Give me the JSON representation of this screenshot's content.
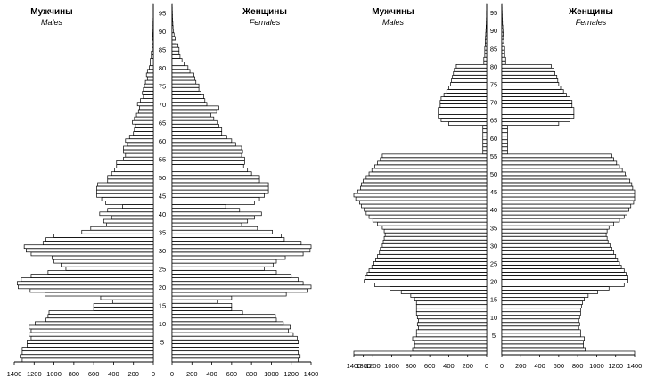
{
  "chart_data": [
    {
      "type": "bar",
      "subtype": "population-pyramid",
      "title": "",
      "male_label": "Мужчины",
      "male_label_en": "Males",
      "female_label": "Женщины",
      "female_label_en": "Females",
      "xlabel": "",
      "ylabel": "",
      "age_ticks": [
        "5",
        "10",
        "15",
        "20",
        "25",
        "30",
        "35",
        "40",
        "45",
        "50",
        "55",
        "60",
        "65",
        "70",
        "75",
        "80",
        "85",
        "90",
        "95"
      ],
      "male_ticks": [
        "1400",
        "1200",
        "1000",
        "800",
        "600",
        "400",
        "200",
        "0"
      ],
      "female_ticks": [
        "0",
        "200",
        "400",
        "600",
        "800",
        "1000",
        "1200",
        "1400"
      ],
      "xlim": [
        0,
        1400
      ],
      "ages": [
        0,
        1,
        2,
        3,
        4,
        5,
        6,
        7,
        8,
        9,
        10,
        11,
        12,
        13,
        14,
        15,
        16,
        17,
        18,
        19,
        20,
        21,
        22,
        23,
        24,
        25,
        26,
        27,
        28,
        29,
        30,
        31,
        32,
        33,
        34,
        35,
        36,
        37,
        38,
        39,
        40,
        41,
        42,
        43,
        44,
        45,
        46,
        47,
        48,
        49,
        50,
        51,
        52,
        53,
        54,
        55,
        56,
        57,
        58,
        59,
        60,
        61,
        62,
        63,
        64,
        65,
        66,
        67,
        68,
        69,
        70,
        71,
        72,
        73,
        74,
        75,
        76,
        77,
        78,
        79,
        80,
        81,
        82,
        83,
        84,
        85,
        86,
        87,
        88,
        89,
        90,
        91,
        92,
        93,
        94,
        95,
        96,
        97
      ],
      "male": [
        1320,
        1340,
        1320,
        1320,
        1270,
        1270,
        1230,
        1250,
        1230,
        1250,
        1190,
        1080,
        1060,
        1050,
        600,
        600,
        410,
        530,
        1090,
        1240,
        1360,
        1370,
        1330,
        1230,
        1060,
        880,
        930,
        1000,
        1020,
        1230,
        1280,
        1300,
        1110,
        1080,
        1000,
        720,
        630,
        470,
        500,
        420,
        540,
        460,
        310,
        480,
        520,
        570,
        570,
        570,
        560,
        460,
        460,
        420,
        390,
        370,
        370,
        300,
        280,
        300,
        300,
        260,
        280,
        240,
        200,
        190,
        180,
        210,
        190,
        170,
        150,
        140,
        160,
        130,
        100,
        110,
        100,
        90,
        80,
        60,
        70,
        60,
        40,
        30,
        30,
        20,
        20,
        10,
        10,
        10,
        8,
        5,
        4,
        3,
        3,
        2,
        1,
        1,
        1,
        1
      ],
      "female": [
        1270,
        1290,
        1270,
        1280,
        1280,
        1270,
        1260,
        1220,
        1170,
        1190,
        1120,
        1050,
        1040,
        710,
        600,
        600,
        460,
        600,
        1150,
        1360,
        1420,
        1320,
        1270,
        1200,
        1050,
        930,
        1020,
        1050,
        1140,
        1320,
        1390,
        1430,
        1300,
        1130,
        1100,
        1010,
        860,
        700,
        760,
        830,
        900,
        680,
        540,
        830,
        880,
        930,
        970,
        970,
        970,
        880,
        880,
        800,
        760,
        720,
        730,
        730,
        700,
        710,
        700,
        640,
        600,
        550,
        500,
        500,
        470,
        460,
        420,
        390,
        450,
        470,
        350,
        330,
        320,
        290,
        270,
        270,
        240,
        230,
        220,
        180,
        160,
        120,
        100,
        80,
        70,
        70,
        60,
        40,
        30,
        20,
        15,
        10,
        8,
        5,
        4,
        3,
        2,
        1
      ]
    },
    {
      "type": "bar",
      "subtype": "population-pyramid",
      "title": "",
      "male_label": "Мужчины",
      "male_label_en": "Males",
      "female_label": "Женщины",
      "female_label_en": "Females",
      "xlabel": "",
      "ylabel": "",
      "age_ticks": [
        "5",
        "10",
        "15",
        "20",
        "25",
        "30",
        "35",
        "40",
        "45",
        "50",
        "55",
        "60",
        "65",
        "70",
        "75",
        "80",
        "85",
        "90",
        "95"
      ],
      "male_ticks": [
        "1400",
        "1300",
        "1200",
        "1000",
        "800",
        "600",
        "400",
        "200",
        "0"
      ],
      "female_ticks": [
        "0",
        "200",
        "400",
        "600",
        "800",
        "1000",
        "1200",
        "1400"
      ],
      "xlim": [
        0,
        1400
      ],
      "ages": [
        0,
        1,
        2,
        3,
        4,
        5,
        6,
        7,
        8,
        9,
        10,
        11,
        12,
        13,
        14,
        15,
        16,
        17,
        18,
        19,
        20,
        21,
        22,
        23,
        24,
        25,
        26,
        27,
        28,
        29,
        30,
        31,
        32,
        33,
        34,
        35,
        36,
        37,
        38,
        39,
        40,
        41,
        42,
        43,
        44,
        45,
        46,
        47,
        48,
        49,
        50,
        51,
        52,
        53,
        54,
        55,
        56,
        57,
        58,
        59,
        60,
        61,
        62,
        63,
        64,
        65,
        66,
        67,
        68,
        69,
        70,
        71,
        72,
        73,
        74,
        75,
        76,
        77,
        78,
        79,
        80,
        81,
        82,
        83,
        84,
        85,
        86,
        87,
        88,
        89,
        90,
        91,
        92,
        93,
        94,
        95,
        96,
        97
      ],
      "male": [
        1400,
        780,
        760,
        760,
        780,
        740,
        740,
        720,
        730,
        720,
        730,
        740,
        740,
        740,
        740,
        760,
        800,
        900,
        1020,
        1180,
        1290,
        1280,
        1260,
        1240,
        1210,
        1190,
        1170,
        1150,
        1130,
        1120,
        1100,
        1090,
        1080,
        1070,
        1080,
        1100,
        1150,
        1200,
        1240,
        1270,
        1290,
        1320,
        1340,
        1380,
        1400,
        1360,
        1330,
        1320,
        1300,
        1270,
        1240,
        1210,
        1180,
        1150,
        1120,
        1100,
        40,
        40,
        40,
        40,
        40,
        40,
        40,
        40,
        400,
        480,
        510,
        510,
        510,
        490,
        490,
        480,
        450,
        420,
        400,
        380,
        370,
        360,
        350,
        340,
        320,
        30,
        30,
        20,
        20,
        20,
        15,
        15,
        12,
        10,
        8,
        6,
        4,
        3,
        2,
        2,
        1,
        1
      ],
      "female": [
        1480,
        880,
        860,
        860,
        870,
        830,
        830,
        810,
        820,
        810,
        820,
        830,
        830,
        840,
        850,
        870,
        910,
        1010,
        1130,
        1290,
        1330,
        1330,
        1310,
        1290,
        1260,
        1240,
        1220,
        1200,
        1180,
        1160,
        1140,
        1120,
        1110,
        1100,
        1110,
        1130,
        1180,
        1240,
        1290,
        1320,
        1340,
        1360,
        1390,
        1430,
        1450,
        1410,
        1380,
        1370,
        1350,
        1320,
        1300,
        1270,
        1240,
        1210,
        1180,
        1160,
        60,
        60,
        60,
        60,
        60,
        60,
        60,
        60,
        600,
        720,
        760,
        760,
        760,
        740,
        740,
        720,
        680,
        650,
        620,
        600,
        590,
        580,
        560,
        550,
        520,
        40,
        40,
        30,
        30,
        30,
        25,
        20,
        18,
        15,
        12,
        10,
        7,
        5,
        4,
        3,
        2,
        1
      ]
    }
  ]
}
